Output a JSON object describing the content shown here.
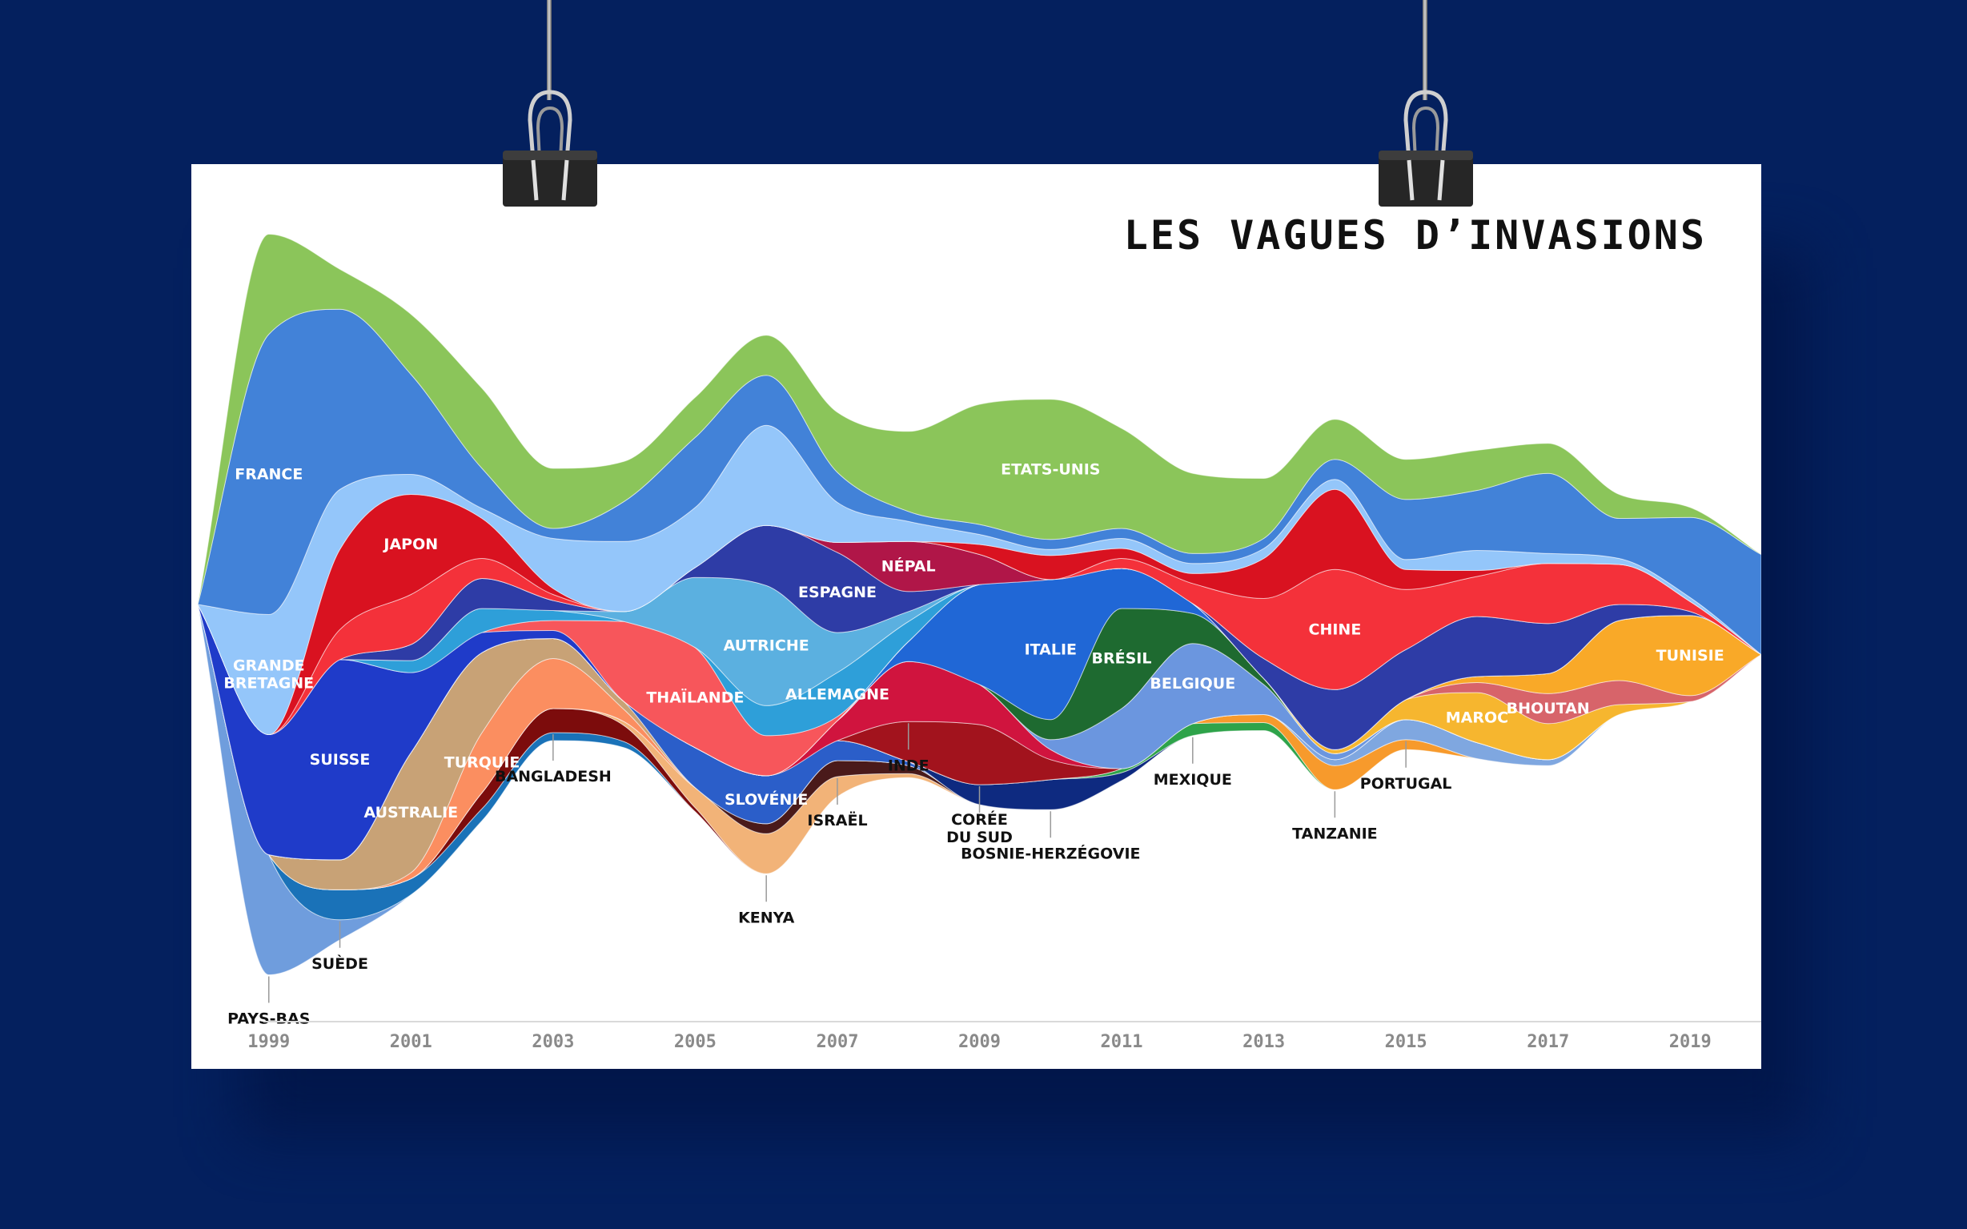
{
  "poster": {
    "title": "LES VAGUES D’INVASIONS"
  },
  "chart_data": {
    "type": "area",
    "style": "streamgraph",
    "title": "LES VAGUES D’INVASIONS",
    "x": [
      1998,
      1999,
      2000,
      2001,
      2002,
      2003,
      2004,
      2005,
      2006,
      2007,
      2008,
      2009,
      2010,
      2011,
      2012,
      2013,
      2014,
      2015,
      2016,
      2017,
      2018,
      2019,
      2020
    ],
    "x_ticks": [
      "1999",
      "2001",
      "2003",
      "2005",
      "2007",
      "2009",
      "2011",
      "2013",
      "2015",
      "2017",
      "2019"
    ],
    "y_unit": "relative stream thickness (no printed axis)",
    "grid": false,
    "legend": "none (labels placed on streams)",
    "series": [
      {
        "name": "PAYS-BAS",
        "color": "#6f9ddd",
        "values": [
          0,
          6,
          1,
          0,
          0,
          0,
          0,
          0,
          0,
          0,
          0,
          0,
          0,
          0,
          0,
          0,
          0,
          0,
          0,
          0,
          0,
          0,
          0
        ]
      },
      {
        "name": "SUÈDE",
        "color": "#1a72b8",
        "values": [
          0,
          0,
          1.5,
          0.8,
          0.6,
          0.4,
          0.3,
          0,
          0,
          0,
          0,
          0,
          0,
          0,
          0,
          0,
          0,
          0,
          0,
          0,
          0,
          0,
          0
        ]
      },
      {
        "name": "BANGLADESH",
        "color": "#7c0c0c",
        "values": [
          0,
          0,
          0,
          0,
          0.8,
          1.2,
          0.8,
          0.2,
          0,
          0,
          0,
          0,
          0,
          0,
          0,
          0,
          0,
          0,
          0,
          0,
          0,
          0,
          0
        ]
      },
      {
        "name": "KENYA",
        "color": "#f2b378",
        "values": [
          0,
          0,
          0,
          0,
          0,
          0,
          0.2,
          1,
          2,
          1,
          0.2,
          0,
          0,
          0,
          0,
          0,
          0,
          0,
          0,
          0,
          0,
          0,
          0
        ]
      },
      {
        "name": "ISRAËL",
        "color": "#4a1a1a",
        "values": [
          0,
          0,
          0,
          0,
          0,
          0,
          0,
          0,
          0.5,
          0.8,
          0.4,
          0,
          0,
          0,
          0,
          0,
          0,
          0,
          0,
          0,
          0,
          0,
          0
        ]
      },
      {
        "name": "TURQUIE",
        "color": "#fb8e60",
        "values": [
          0,
          0,
          0,
          0.3,
          3,
          2.5,
          0.6,
          0,
          0,
          0,
          0,
          0,
          0,
          0,
          0,
          0,
          0,
          0,
          0,
          0,
          0,
          0,
          0
        ]
      },
      {
        "name": "AUSTRALIE",
        "color": "#c8a276",
        "values": [
          0,
          0,
          1.5,
          6,
          4,
          1,
          0.4,
          0,
          0,
          0,
          0,
          0,
          0,
          0,
          0,
          0,
          0,
          0,
          0,
          0,
          0,
          0,
          0
        ]
      },
      {
        "name": "SLOVÉNIE",
        "color": "#2b5ec9",
        "values": [
          0,
          0,
          0,
          0,
          0,
          0,
          0,
          2,
          2.4,
          1,
          0.2,
          0,
          0,
          0,
          0,
          0,
          0,
          0,
          0,
          0,
          0,
          0,
          0
        ]
      },
      {
        "name": "BOSNIE-HERZÉGOVIE",
        "color": "#0e2a80",
        "values": [
          0,
          0,
          0,
          0,
          0,
          0,
          0,
          0,
          0,
          0,
          0,
          1,
          1.5,
          0.4,
          0,
          0,
          0,
          0,
          0,
          0,
          0,
          0,
          0
        ]
      },
      {
        "name": "MEXIQUE",
        "color": "#2ea34a",
        "values": [
          0,
          0,
          0,
          0,
          0,
          0,
          0,
          0,
          0,
          0,
          0,
          0,
          0,
          0.2,
          0.6,
          0.4,
          0,
          0,
          0,
          0,
          0,
          0,
          0
        ]
      },
      {
        "name": "TANZANIE",
        "color": "#f79a2c",
        "values": [
          0,
          0,
          0,
          0,
          0,
          0,
          0,
          0,
          0,
          0,
          0,
          0,
          0,
          0,
          0,
          0.4,
          1.2,
          0.5,
          0,
          0,
          0,
          0,
          0
        ]
      },
      {
        "name": "PORTUGAL",
        "color": "#7fa7e0",
        "values": [
          0,
          0,
          0,
          0,
          0,
          0,
          0,
          0,
          0,
          0,
          0,
          0,
          0,
          0,
          0,
          0,
          0.3,
          1,
          0.8,
          0.3,
          0,
          0,
          0
        ]
      },
      {
        "name": "CORÉE DU SUD",
        "color": "#a2131d",
        "values": [
          0,
          0,
          0,
          0,
          0,
          0,
          0,
          0,
          0,
          0,
          2,
          3,
          1,
          0,
          0,
          0,
          0,
          0,
          0,
          0,
          0,
          0,
          0
        ]
      },
      {
        "name": "INDE",
        "color": "#d0143e",
        "values": [
          0,
          0,
          0,
          0,
          0,
          0,
          0,
          0,
          0,
          1,
          3,
          2,
          0.5,
          0,
          0,
          0,
          0,
          0,
          0,
          0,
          0,
          0,
          0
        ]
      },
      {
        "name": "BELGIQUE",
        "color": "#6b96df",
        "values": [
          0,
          0,
          0,
          0,
          0,
          0,
          0,
          0,
          0,
          0,
          0,
          0,
          0.5,
          3,
          4,
          1.5,
          0.3,
          0,
          0,
          0,
          0,
          0,
          0
        ]
      },
      {
        "name": "BRÉSIL",
        "color": "#1e6a30",
        "values": [
          0,
          0,
          0,
          0,
          0,
          0,
          0,
          0,
          0,
          0,
          0,
          0,
          1,
          5,
          1.5,
          0.3,
          0,
          0,
          0,
          0,
          0,
          0,
          0
        ]
      },
      {
        "name": "ITALIE",
        "color": "#2067d6",
        "values": [
          0,
          0,
          0,
          0,
          0,
          0,
          0,
          0,
          0,
          0,
          1,
          5,
          7,
          2,
          0.5,
          0,
          0,
          0,
          0,
          0,
          0,
          0,
          0
        ]
      },
      {
        "name": "MAROC",
        "color": "#f6b62f",
        "values": [
          0,
          0,
          0,
          0,
          0,
          0,
          0,
          0,
          0,
          0,
          0,
          0,
          0,
          0,
          0,
          0,
          0.2,
          1,
          2.5,
          1.8,
          0.5,
          0,
          0
        ]
      },
      {
        "name": "BHOUTAN",
        "color": "#d7646a",
        "values": [
          0,
          0,
          0,
          0,
          0,
          0,
          0,
          0,
          0,
          0,
          0,
          0,
          0,
          0,
          0,
          0,
          0,
          0,
          0.5,
          1.5,
          1.2,
          0.3,
          0
        ]
      },
      {
        "name": "TUNISIE",
        "color": "#f9a928",
        "values": [
          0,
          0,
          0,
          0,
          0,
          0,
          0,
          0,
          0,
          0,
          0,
          0,
          0,
          0,
          0,
          0,
          0,
          0,
          0.3,
          1,
          3,
          4,
          0
        ]
      },
      {
        "name": "SUISSE",
        "color": "#1f3bc9",
        "values": [
          0,
          6,
          10,
          4,
          1,
          0.4,
          0,
          0,
          0,
          0,
          0,
          0,
          0,
          0,
          0,
          0,
          0,
          0,
          0,
          0,
          0,
          0,
          0
        ]
      },
      {
        "name": "THAÏLANDE",
        "color": "#f7565b",
        "values": [
          0,
          0,
          0,
          0,
          0,
          0.5,
          4,
          5,
          2,
          0.2,
          0,
          0,
          0,
          0,
          0,
          0,
          0,
          0,
          0,
          0,
          0,
          0,
          0
        ]
      },
      {
        "name": "ALLEMAGNE",
        "color": "#2e9fd9",
        "values": [
          0,
          0,
          0,
          0.6,
          1.2,
          0.5,
          0,
          0,
          1.5,
          2.2,
          1,
          0,
          0,
          0,
          0,
          0,
          0,
          0,
          0,
          0,
          0,
          0,
          0
        ]
      },
      {
        "name": "AUTRICHE",
        "color": "#5bb0e0",
        "values": [
          0,
          0,
          0,
          0,
          0,
          0,
          0.5,
          3.5,
          6,
          2,
          0.5,
          0,
          0,
          0,
          0,
          0,
          0,
          0,
          0,
          0,
          0,
          0,
          0
        ]
      },
      {
        "name": "ESPAGNE",
        "color": "#2e3ca6",
        "values": [
          0,
          0,
          0,
          0.8,
          1.5,
          0.5,
          0,
          0.5,
          3,
          4,
          1,
          0,
          0,
          0,
          0,
          1,
          3,
          2.5,
          3,
          2.5,
          0.8,
          0.2,
          0
        ]
      },
      {
        "name": "NÉPAL",
        "color": "#b01648",
        "values": [
          0,
          0,
          0,
          0,
          0,
          0,
          0,
          0,
          0,
          0.5,
          2.5,
          1.5,
          0,
          0,
          0,
          0,
          0,
          0,
          0,
          0,
          0,
          0,
          0
        ]
      },
      {
        "name": "CHINE",
        "color": "#f4313a",
        "values": [
          0,
          0,
          1.5,
          2.5,
          1,
          0.3,
          0,
          0,
          0,
          0,
          0,
          0,
          0,
          0.5,
          1,
          3,
          6,
          3,
          2,
          3,
          2,
          0.5,
          0
        ]
      },
      {
        "name": "JAPON",
        "color": "#d91220",
        "values": [
          0,
          0,
          4,
          5,
          2,
          0.3,
          0,
          0,
          0,
          0,
          0,
          0.5,
          1.2,
          0.5,
          0.5,
          2,
          4,
          1,
          0.3,
          0,
          0,
          0,
          0
        ]
      },
      {
        "name": "GRANDE BRETAGNE",
        "color": "#94c6fa",
        "values": [
          0,
          6,
          3,
          1,
          0.5,
          2.5,
          3.5,
          3,
          5,
          2,
          1,
          0.5,
          0.3,
          0.5,
          0.5,
          0.5,
          0.5,
          0.5,
          1,
          0.5,
          0.3,
          0.2,
          0
        ]
      },
      {
        "name": "FRANCE",
        "color": "#4282d8",
        "values": [
          0,
          14,
          9,
          5,
          2,
          0.5,
          2,
          3.5,
          2.5,
          1.5,
          0.5,
          0.5,
          0.5,
          0.5,
          0.5,
          0.5,
          1,
          3,
          3,
          4,
          2,
          4,
          5
        ]
      },
      {
        "name": "ETATS-UNIS",
        "color": "#8bc55a",
        "values": [
          0,
          5,
          2,
          3,
          4,
          3,
          2,
          2,
          2,
          3,
          4,
          6,
          7,
          5,
          4,
          3,
          2,
          2,
          2,
          1.5,
          1.2,
          0.5,
          0
        ]
      }
    ]
  },
  "labels": [
    {
      "text": "FRANCE",
      "color": "white"
    },
    {
      "text": "ETATS-UNIS",
      "color": "white"
    },
    {
      "text": "GRANDE BRETAGNE",
      "color": "white"
    },
    {
      "text": "ESPAGNE",
      "color": "white"
    },
    {
      "text": "NÉPAL",
      "color": "white"
    },
    {
      "text": "JAPON",
      "color": "white"
    },
    {
      "text": "CHINE",
      "color": "white"
    },
    {
      "text": "BRÉSIL",
      "color": "white"
    },
    {
      "text": "ITALIE",
      "color": "white"
    },
    {
      "text": "BELGIQUE",
      "color": "white"
    },
    {
      "text": "AUTRICHE",
      "color": "white"
    },
    {
      "text": "THAÏLANDE",
      "color": "white"
    },
    {
      "text": "ALLEMAGNE",
      "color": "white"
    },
    {
      "text": "SLOVÉNIE",
      "color": "white"
    },
    {
      "text": "AUSTRALIE",
      "color": "white"
    },
    {
      "text": "TURQUIE",
      "color": "white"
    },
    {
      "text": "SUISSE",
      "color": "white"
    },
    {
      "text": "TUNISIE",
      "color": "white"
    },
    {
      "text": "BHOUTAN",
      "color": "white"
    },
    {
      "text": "MAROC",
      "color": "white"
    },
    {
      "text": "PAYS-BAS",
      "color": "black"
    },
    {
      "text": "SUÈDE",
      "color": "black"
    },
    {
      "text": "BANGLADESH",
      "color": "black"
    },
    {
      "text": "KENYA",
      "color": "black"
    },
    {
      "text": "ISRAËL",
      "color": "black"
    },
    {
      "text": "INDE",
      "color": "black"
    },
    {
      "text": "CORÉE DU SUD",
      "color": "black"
    },
    {
      "text": "BOSNIE-HERZÉGOVIE",
      "color": "black"
    },
    {
      "text": "MEXIQUE",
      "color": "black"
    },
    {
      "text": "TANZANIE",
      "color": "black"
    },
    {
      "text": "PORTUGAL",
      "color": "black"
    }
  ],
  "colors": {
    "background": "#04205e",
    "poster": "#ffffff",
    "axis_text": "#8a8a8a"
  }
}
